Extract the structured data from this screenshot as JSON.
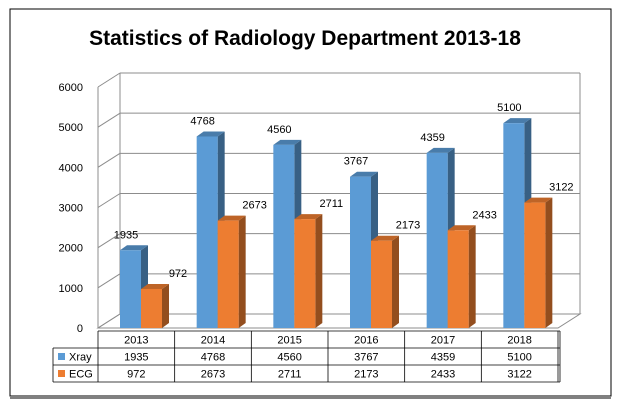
{
  "chart_data": {
    "type": "bar",
    "title": "Statistics of Radiology Department 2013-18",
    "categories": [
      "2013",
      "2014",
      "2015",
      "2016",
      "2017",
      "2018"
    ],
    "series": [
      {
        "name": "Xray",
        "color": "#5B9BD5",
        "values": [
          1935,
          4768,
          4560,
          3767,
          4359,
          5100
        ]
      },
      {
        "name": "ECG",
        "color": "#ED7D31",
        "values": [
          972,
          2673,
          2711,
          2173,
          2433,
          3122
        ]
      }
    ],
    "ylim": [
      0,
      6000
    ],
    "yticks": [
      "0",
      "1000",
      "2000",
      "3000",
      "4000",
      "5000",
      "6000"
    ],
    "grid": true,
    "legend": "data-table",
    "style": "3d-clustered-column"
  }
}
